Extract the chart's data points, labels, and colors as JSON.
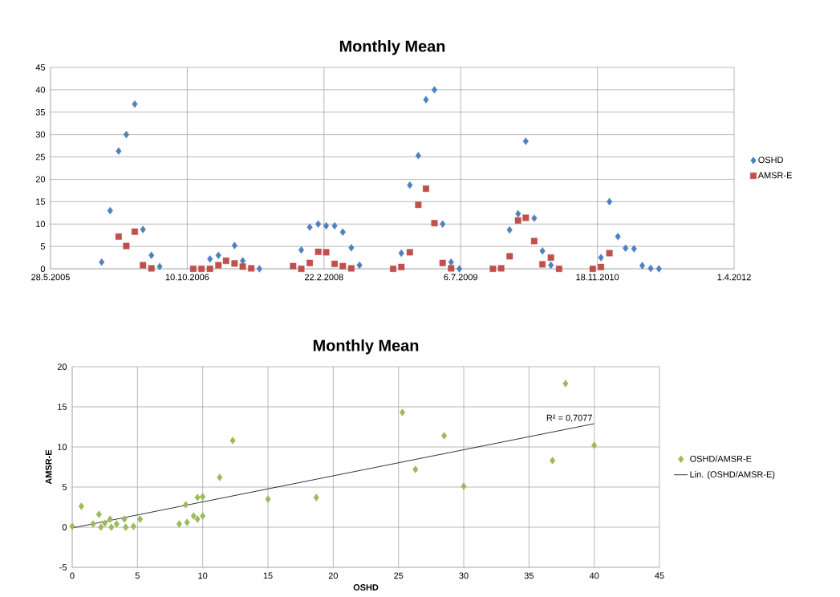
{
  "chart_data": [
    {
      "type": "scatter",
      "title": "Monthly Mean",
      "xlim": [
        "2005-05-28",
        "2012-04-01"
      ],
      "xticks": [
        {
          "value": "2005-05-28",
          "label": "28.5.2005"
        },
        {
          "value": "2006-10-10",
          "label": "10.10.2006"
        },
        {
          "value": "2008-02-22",
          "label": "22.2.2008"
        },
        {
          "value": "2009-07-06",
          "label": "6.7.2009"
        },
        {
          "value": "2010-11-18",
          "label": "18.11.2010"
        },
        {
          "value": "2012-04-01",
          "label": "1.4.2012"
        }
      ],
      "ylim": [
        0,
        45
      ],
      "yticks": [
        0,
        5,
        10,
        15,
        20,
        25,
        30,
        35,
        40,
        45
      ],
      "grid": true,
      "legend": "right",
      "series": [
        {
          "name": "OSHD",
          "color": "#4f81bd",
          "marker": "diamond",
          "x": [
            "2005-12",
            "2006-01",
            "2006-02",
            "2006-03",
            "2006-04",
            "2006-05",
            "2006-06",
            "2006-07",
            "2007-01",
            "2007-02",
            "2007-03",
            "2007-04",
            "2007-05",
            "2007-07",
            "2007-12",
            "2008-01",
            "2008-02",
            "2008-03",
            "2008-04",
            "2008-05",
            "2008-06",
            "2008-07",
            "2008-12",
            "2009-01",
            "2009-02",
            "2009-03",
            "2009-04",
            "2009-05",
            "2009-06",
            "2009-07",
            "2010-01",
            "2010-02",
            "2010-03",
            "2010-04",
            "2010-05",
            "2010-06",
            "2010-12",
            "2011-01",
            "2011-02",
            "2011-03",
            "2011-04",
            "2011-05",
            "2011-06",
            "2011-07"
          ],
          "values": [
            1.5,
            13,
            26.3,
            30,
            36.8,
            8.8,
            3,
            0.5,
            2.2,
            3,
            null,
            5.2,
            1.8,
            0,
            4.2,
            9.3,
            10,
            9.6,
            9.6,
            8.2,
            4.7,
            0.8,
            3.5,
            18.7,
            25.3,
            37.8,
            40,
            10,
            1.5,
            0,
            8.7,
            12.3,
            28.5,
            11.3,
            4,
            0.8,
            2.5,
            15,
            7.2,
            4.6,
            4.5,
            0.7,
            0.1,
            0
          ]
        },
        {
          "name": "AMSR-E",
          "color": "#c0504d",
          "marker": "square",
          "x": [
            "2006-02",
            "2006-03",
            "2006-04",
            "2006-05",
            "2006-06",
            "2006-11",
            "2006-12",
            "2007-01",
            "2007-02",
            "2007-03",
            "2007-04",
            "2007-05",
            "2007-06",
            "2007-11",
            "2007-12",
            "2008-01",
            "2008-02",
            "2008-03",
            "2008-04",
            "2008-05",
            "2008-06",
            "2008-11",
            "2008-12",
            "2009-01",
            "2009-02",
            "2009-03",
            "2009-04",
            "2009-05",
            "2009-06",
            "2009-11",
            "2009-12",
            "2010-01",
            "2010-02",
            "2010-03",
            "2010-04",
            "2010-05",
            "2010-06",
            "2010-07",
            "2010-11",
            "2010-12",
            "2011-01"
          ],
          "values": [
            7.2,
            5.1,
            8.3,
            0.8,
            0.1,
            0,
            0,
            0,
            0.8,
            1.8,
            1.2,
            0.5,
            0.1,
            0.6,
            0,
            1.3,
            3.8,
            3.7,
            1.1,
            0.6,
            0.1,
            0,
            0.4,
            3.7,
            14.3,
            17.9,
            10.2,
            1.3,
            0.1,
            0,
            0.1,
            2.8,
            10.8,
            11.4,
            6.2,
            1,
            2.5,
            0,
            0,
            0.4,
            3.5
          ]
        }
      ]
    },
    {
      "type": "scatter",
      "title": "Monthly Mean",
      "xlabel": "OSHD",
      "ylabel": "AMSR-E",
      "xlim": [
        0,
        45
      ],
      "xticks": [
        0,
        5,
        10,
        15,
        20,
        25,
        30,
        35,
        40,
        45
      ],
      "ylim": [
        -5,
        20
      ],
      "yticks": [
        -5,
        0,
        5,
        10,
        15,
        20
      ],
      "grid": true,
      "legend": "right",
      "annotations": [
        "R² = 0,7077"
      ],
      "series": [
        {
          "name": "OSHD/AMSR-E",
          "color": "#9bbb59",
          "marker": "diamond",
          "x": [
            0,
            0.7,
            1.6,
            2.05,
            2.2,
            2.5,
            2.9,
            3,
            3.4,
            4,
            4.1,
            4.7,
            5.2,
            8.2,
            8.7,
            8.8,
            9.3,
            9.6,
            9.6,
            10,
            10,
            11.3,
            12.3,
            15,
            18.7,
            25.3,
            26.3,
            28.5,
            30,
            36.8,
            37.8,
            40
          ],
          "values": [
            0.1,
            2.6,
            0.4,
            1.6,
            0,
            0.5,
            1,
            0,
            0.4,
            1,
            0,
            0.1,
            1,
            0.4,
            2.8,
            0.6,
            1.4,
            3.7,
            1,
            1.4,
            3.8,
            6.2,
            10.8,
            3.5,
            3.7,
            14.3,
            7.2,
            11.4,
            5.1,
            8.3,
            17.9,
            10.2
          ]
        },
        {
          "name": "Lin. (OSHD/AMSR-E)",
          "type": "line",
          "color": "#000000",
          "marker": "none",
          "x": [
            0,
            40
          ],
          "values": [
            -0.1,
            12.9
          ]
        }
      ]
    }
  ]
}
